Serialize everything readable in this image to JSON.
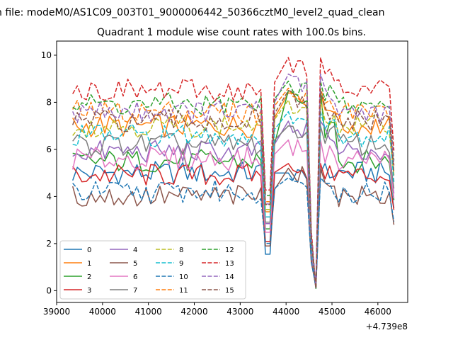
{
  "chart_data": {
    "type": "line",
    "suptitle": "n file: modeM0/AS1C09_003T01_9000006442_50366cztM0_level2_quad_clean",
    "title": "Quadrant 1 module wise count rates with 100.0s bins.",
    "xlabel": "",
    "ylabel": "",
    "x_offset_label": "+4.739e8",
    "xlim": [
      39000,
      46650
    ],
    "ylim": [
      -0.5,
      10.6
    ],
    "xticks": [
      39000,
      40000,
      41000,
      42000,
      43000,
      44000,
      45000,
      46000
    ],
    "yticks": [
      0,
      2,
      4,
      6,
      8,
      10
    ],
    "grid": false,
    "legend": {
      "placement": "lower-left",
      "columns": 4
    },
    "x": [
      39350,
      39450,
      39550,
      39650,
      39750,
      39850,
      39950,
      40050,
      40150,
      40250,
      40350,
      40450,
      40550,
      40650,
      40750,
      40850,
      40950,
      41050,
      41150,
      41250,
      41350,
      41450,
      41550,
      41650,
      41750,
      41850,
      41950,
      42050,
      42150,
      42250,
      42350,
      42450,
      42550,
      42650,
      42750,
      42850,
      42950,
      43050,
      43150,
      43250,
      43350,
      43450,
      43550,
      43650,
      43750,
      43850,
      43950,
      44050,
      44150,
      44250,
      44350,
      44450,
      44550,
      44650,
      44750,
      44850,
      44950,
      45050,
      45150,
      45250,
      45350,
      45450,
      45550,
      45650,
      45750,
      45850,
      45950,
      46050,
      46150,
      46250,
      46350
    ],
    "series": [
      {
        "name": "0",
        "color": "#1f77b4",
        "dash": "solid",
        "base": 5.0,
        "dip": 1.2,
        "spike": 5.0
      },
      {
        "name": "1",
        "color": "#ff7f0e",
        "dash": "solid",
        "base": 7.0,
        "dip": 0.5,
        "spike": 8.4
      },
      {
        "name": "2",
        "color": "#2ca02c",
        "dash": "solid",
        "base": 5.5,
        "dip": 0.4,
        "spike": 8.5
      },
      {
        "name": "3",
        "color": "#d62728",
        "dash": "solid",
        "base": 4.9,
        "dip": 0.6,
        "spike": 5.4
      },
      {
        "name": "4",
        "color": "#9467bd",
        "dash": "solid",
        "base": 5.9,
        "dip": 0.4,
        "spike": 7.2
      },
      {
        "name": "5",
        "color": "#8c564b",
        "dash": "solid",
        "base": 4.0,
        "dip": 0.3,
        "spike": 5.2
      },
      {
        "name": "6",
        "color": "#e377c2",
        "dash": "solid",
        "base": 5.6,
        "dip": 0.6,
        "spike": 6.4
      },
      {
        "name": "7",
        "color": "#7f7f7f",
        "dash": "solid",
        "base": 6.2,
        "dip": 0.5,
        "spike": 7.0
      },
      {
        "name": "8",
        "color": "#bcbd22",
        "dash": "dashed",
        "base": 7.0,
        "dip": 0.4,
        "spike": 8.1
      },
      {
        "name": "9",
        "color": "#17becf",
        "dash": "dashed",
        "base": 6.6,
        "dip": 0.5,
        "spike": 7.6
      },
      {
        "name": "10",
        "color": "#1f77b4",
        "dash": "dashed",
        "base": 4.2,
        "dip": 0.3,
        "spike": 4.8
      },
      {
        "name": "11",
        "color": "#ff7f0e",
        "dash": "dashed",
        "base": 7.6,
        "dip": 0.4,
        "spike": 8.6
      },
      {
        "name": "12",
        "color": "#2ca02c",
        "dash": "dashed",
        "base": 7.9,
        "dip": 0.3,
        "spike": 8.9
      },
      {
        "name": "13",
        "color": "#d62728",
        "dash": "dashed",
        "base": 8.5,
        "dip": 0.4,
        "spike": 9.9
      },
      {
        "name": "14",
        "color": "#9467bd",
        "dash": "dashed",
        "base": 7.6,
        "dip": 0.5,
        "spike": 9.2
      },
      {
        "name": "15",
        "color": "#8c564b",
        "dash": "dashed",
        "base": 7.2,
        "dip": 0.3,
        "spike": 8.5
      }
    ]
  }
}
